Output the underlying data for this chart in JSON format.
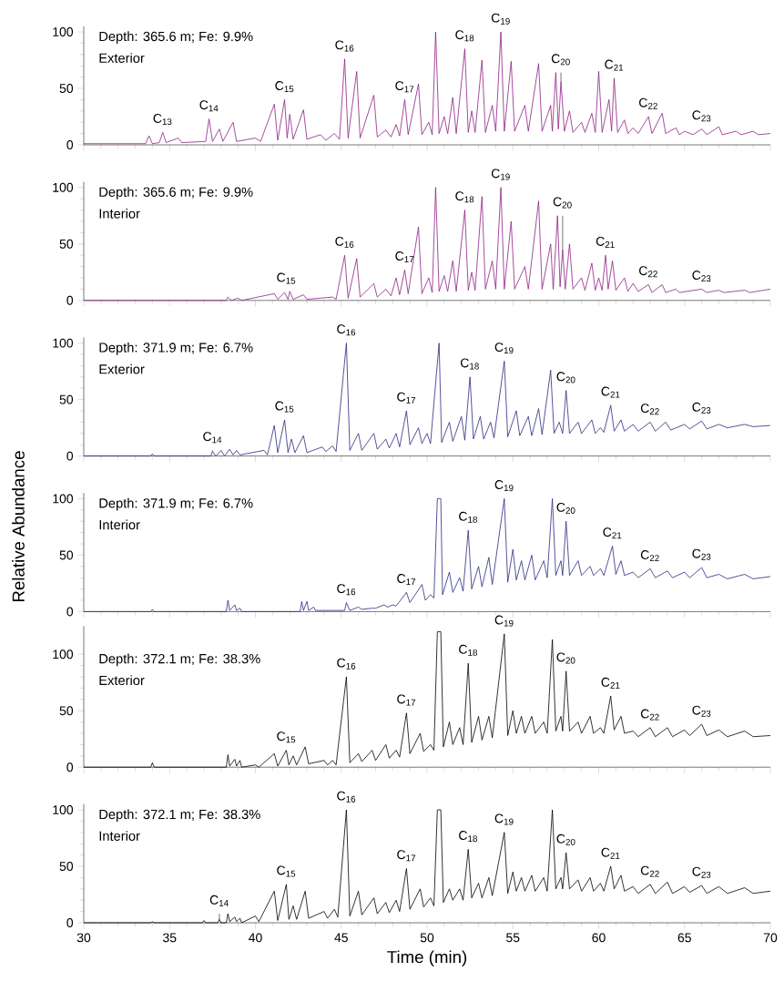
{
  "chart_data": [
    {
      "type": "line",
      "title": "Depth: 365.6 m; Fe: 9.9%",
      "subtitle": "Exterior",
      "tick_labels": "y",
      "xlim": [
        30,
        70
      ],
      "xticks": [
        30,
        35,
        40,
        45,
        50,
        55,
        60,
        65,
        70
      ],
      "ylim": [
        0,
        105
      ],
      "yticks": [
        0,
        50,
        100
      ],
      "series": [
        {
          "color": "#8e1f85",
          "x": [
            30,
            33.6,
            33.8,
            34.0,
            34.4,
            34.6,
            34.8,
            35.5,
            35.7,
            37.1,
            37.3,
            37.5,
            37.9,
            38.1,
            38.7,
            38.9,
            40.0,
            40.3,
            41.1,
            41.3,
            41.7,
            41.85,
            42.0,
            42.2,
            42.8,
            43.0,
            43.8,
            44.1,
            44.6,
            44.9,
            45.2,
            45.4,
            45.9,
            46.1,
            46.9,
            47.1,
            47.6,
            47.9,
            48.2,
            48.4,
            48.7,
            48.9,
            49.5,
            49.7,
            50.1,
            50.3,
            50.5,
            50.7,
            51.0,
            51.2,
            51.5,
            51.7,
            52.2,
            52.4,
            52.6,
            52.8,
            53.2,
            53.4,
            53.8,
            54.0,
            54.3,
            54.5,
            54.9,
            55.1,
            55.7,
            55.9,
            56.5,
            56.7,
            57.2,
            57.3,
            57.5,
            57.65,
            57.8,
            58.0,
            58.3,
            58.5,
            59.0,
            59.2,
            59.6,
            59.8,
            60.0,
            60.2,
            60.6,
            60.75,
            60.9,
            61.1,
            61.5,
            61.7,
            62.0,
            62.3,
            62.9,
            63.1,
            63.7,
            63.9,
            64.5,
            64.7,
            65.0,
            65.5,
            66.0,
            66.3,
            67.0,
            67.2,
            68.0,
            68.3,
            69.0,
            69.3,
            70.0
          ],
          "values": [
            1,
            1,
            8,
            1,
            2,
            11,
            2,
            6,
            2,
            3,
            23,
            3,
            14,
            3,
            20,
            3,
            6,
            3,
            36,
            4,
            40,
            6,
            27,
            5,
            31,
            5,
            9,
            4,
            10,
            5,
            76,
            6,
            65,
            6,
            44,
            7,
            13,
            7,
            18,
            8,
            40,
            9,
            54,
            9,
            20,
            9,
            100,
            10,
            25,
            10,
            42,
            10,
            85,
            11,
            30,
            11,
            75,
            11,
            35,
            12,
            100,
            12,
            74,
            12,
            35,
            12,
            72,
            12,
            35,
            12,
            64,
            14,
            56,
            12,
            30,
            11,
            20,
            11,
            28,
            11,
            65,
            11,
            40,
            12,
            59,
            11,
            22,
            10,
            15,
            10,
            25,
            10,
            28,
            10,
            15,
            9,
            12,
            9,
            14,
            9,
            16,
            9,
            12,
            9,
            12,
            9,
            10
          ]
        }
      ],
      "annotations": [
        {
          "text": "C$_{13}$",
          "x": 34.6,
          "y": 11
        },
        {
          "text": "C$_{14}$",
          "x": 37.3,
          "y": 23
        },
        {
          "text": "C$_{15}$",
          "x": 41.7,
          "y": 40
        },
        {
          "text": "C$_{16}$",
          "x": 45.2,
          "y": 76
        },
        {
          "text": "C$_{17}$",
          "x": 48.7,
          "y": 40
        },
        {
          "text": "C$_{18}$",
          "x": 52.2,
          "y": 85
        },
        {
          "text": "C$_{19}$",
          "x": 54.3,
          "y": 100
        },
        {
          "text": "C$_{20}$",
          "x": 57.8,
          "y": 56
        },
        {
          "text": "C$_{21}$",
          "x": 60.9,
          "y": 59
        },
        {
          "text": "C$_{22}$",
          "x": 62.9,
          "y": 25
        },
        {
          "text": "C$_{23}$",
          "x": 66.0,
          "y": 14
        }
      ]
    },
    {
      "type": "line",
      "title": "Depth: 365.6 m; Fe: 9.9%",
      "subtitle": "Interior",
      "tick_labels": "y",
      "xlim": [
        30,
        70
      ],
      "xticks": [
        30,
        35,
        40,
        45,
        50,
        55,
        60,
        65,
        70
      ],
      "ylim": [
        0,
        105
      ],
      "yticks": [
        0,
        50,
        100
      ],
      "series": [
        {
          "color": "#8e1f85",
          "x": [
            30,
            38.3,
            38.4,
            38.6,
            39.0,
            39.2,
            41.1,
            41.3,
            41.7,
            41.9,
            42.0,
            42.2,
            42.8,
            43.0,
            44.5,
            44.7,
            45.2,
            45.4,
            45.9,
            46.1,
            46.9,
            47.1,
            47.6,
            47.9,
            48.2,
            48.4,
            48.7,
            48.9,
            49.5,
            49.7,
            50.1,
            50.3,
            50.5,
            50.7,
            51.0,
            51.2,
            51.5,
            51.7,
            52.2,
            52.4,
            52.6,
            52.8,
            53.2,
            53.4,
            53.8,
            54.0,
            54.3,
            54.5,
            54.9,
            55.1,
            55.7,
            55.9,
            56.5,
            56.7,
            57.2,
            57.35,
            57.6,
            57.75,
            57.9,
            58.05,
            58.3,
            58.5,
            59.0,
            59.2,
            59.6,
            59.8,
            60.0,
            60.2,
            60.4,
            60.55,
            60.8,
            61.0,
            61.5,
            61.7,
            62.0,
            62.3,
            62.9,
            63.1,
            63.7,
            63.9,
            64.5,
            64.7,
            66.0,
            66.3,
            67.0,
            67.3,
            68.5,
            68.8,
            70.0
          ],
          "values": [
            0,
            0,
            3,
            0,
            2,
            0,
            6,
            1,
            7,
            1,
            8,
            1,
            5,
            1,
            3,
            1,
            40,
            2,
            37,
            3,
            15,
            3,
            10,
            4,
            20,
            5,
            27,
            6,
            65,
            6,
            20,
            7,
            100,
            8,
            22,
            8,
            35,
            8,
            80,
            9,
            25,
            9,
            92,
            10,
            35,
            10,
            100,
            10,
            70,
            10,
            30,
            10,
            88,
            10,
            50,
            10,
            75,
            12,
            45,
            10,
            50,
            10,
            20,
            9,
            33,
            9,
            20,
            9,
            40,
            10,
            35,
            9,
            20,
            8,
            15,
            8,
            14,
            7,
            14,
            7,
            10,
            7,
            10,
            7,
            9,
            7,
            9,
            7,
            10
          ]
        }
      ],
      "annotations": [
        {
          "text": "C$_{15}$",
          "x": 41.8,
          "y": 8
        },
        {
          "text": "C$_{16}$",
          "x": 45.2,
          "y": 40
        },
        {
          "text": "C$_{17}$",
          "x": 48.7,
          "y": 27
        },
        {
          "text": "C$_{18}$",
          "x": 52.2,
          "y": 80
        },
        {
          "text": "C$_{19}$",
          "x": 54.3,
          "y": 100
        },
        {
          "text": "C$_{20}$",
          "x": 57.9,
          "y": 45
        },
        {
          "text": "C$_{21}$",
          "x": 60.4,
          "y": 40
        },
        {
          "text": "C$_{22}$",
          "x": 62.9,
          "y": 14
        },
        {
          "text": "C$_{23}$",
          "x": 66.0,
          "y": 10
        }
      ]
    },
    {
      "type": "line",
      "title": "Depth: 371.9 m; Fe: 6.7%",
      "subtitle": "Exterior",
      "tick_labels": "y",
      "xlim": [
        30,
        70
      ],
      "xticks": [
        30,
        35,
        40,
        45,
        50,
        55,
        60,
        65,
        70
      ],
      "ylim": [
        0,
        105
      ],
      "yticks": [
        0,
        50,
        100
      ],
      "series": [
        {
          "color": "#2b2a80",
          "x": [
            30,
            33.9,
            34.0,
            34.1,
            37.4,
            37.5,
            37.7,
            38.0,
            38.2,
            38.5,
            38.7,
            38.9,
            39.1,
            40.5,
            40.7,
            41.1,
            41.3,
            41.7,
            41.9,
            42.1,
            42.3,
            42.8,
            43.0,
            43.9,
            44.1,
            44.5,
            44.7,
            45.3,
            45.5,
            46.0,
            46.2,
            46.9,
            47.1,
            47.6,
            47.8,
            48.2,
            48.4,
            48.8,
            49.0,
            49.5,
            49.7,
            50.0,
            50.2,
            50.7,
            50.85,
            51.3,
            51.5,
            52.0,
            52.2,
            52.5,
            52.7,
            53.1,
            53.3,
            53.7,
            53.9,
            54.5,
            54.7,
            55.2,
            55.4,
            55.9,
            56.1,
            56.5,
            56.7,
            57.2,
            57.4,
            57.7,
            57.9,
            58.1,
            58.3,
            58.8,
            59.0,
            59.6,
            59.8,
            60.1,
            60.3,
            60.7,
            60.9,
            61.3,
            61.5,
            62.0,
            62.3,
            63.0,
            63.3,
            63.9,
            64.2,
            65.0,
            65.3,
            66.0,
            66.3,
            67.0,
            67.5,
            68.5,
            69.0,
            70.0
          ],
          "values": [
            0,
            0,
            2,
            0,
            0,
            4,
            0,
            5,
            0,
            6,
            1,
            5,
            1,
            5,
            1,
            27,
            3,
            32,
            3,
            15,
            3,
            18,
            3,
            8,
            4,
            9,
            4,
            100,
            5,
            20,
            5,
            20,
            6,
            15,
            7,
            20,
            8,
            40,
            10,
            25,
            11,
            20,
            11,
            100,
            12,
            30,
            13,
            35,
            14,
            70,
            15,
            35,
            15,
            30,
            16,
            84,
            17,
            40,
            18,
            35,
            18,
            42,
            19,
            76,
            20,
            30,
            20,
            58,
            20,
            30,
            20,
            32,
            20,
            25,
            21,
            45,
            22,
            32,
            22,
            28,
            22,
            30,
            22,
            30,
            23,
            28,
            24,
            31,
            24,
            28,
            25,
            28,
            26,
            27
          ]
        }
      ],
      "annotations": [
        {
          "text": "C$_{14}$",
          "x": 37.5,
          "y": 4
        },
        {
          "text": "C$_{15}$",
          "x": 41.7,
          "y": 32
        },
        {
          "text": "C$_{16}$",
          "x": 45.3,
          "y": 100
        },
        {
          "text": "C$_{17}$",
          "x": 48.8,
          "y": 40
        },
        {
          "text": "C$_{18}$",
          "x": 52.5,
          "y": 70
        },
        {
          "text": "C$_{19}$",
          "x": 54.5,
          "y": 84
        },
        {
          "text": "C$_{20}$",
          "x": 58.1,
          "y": 58
        },
        {
          "text": "C$_{21}$",
          "x": 60.7,
          "y": 45
        },
        {
          "text": "C$_{22}$",
          "x": 63.0,
          "y": 30
        },
        {
          "text": "C$_{23}$",
          "x": 66.0,
          "y": 31
        }
      ]
    },
    {
      "type": "line",
      "title": "Depth: 371.9 m; Fe: 6.7%",
      "subtitle": "Interior",
      "ylabel": "Relative Abundance",
      "tick_labels": "y",
      "xlim": [
        30,
        70
      ],
      "xticks": [
        30,
        35,
        40,
        45,
        50,
        55,
        60,
        65,
        70
      ],
      "ylim": [
        0,
        105
      ],
      "yticks": [
        0,
        50,
        100
      ],
      "series": [
        {
          "color": "#2b2a80",
          "x": [
            30,
            33.9,
            34.0,
            34.1,
            38.3,
            38.4,
            38.5,
            38.8,
            38.9,
            39.1,
            39.2,
            42.6,
            42.7,
            42.8,
            43.0,
            43.1,
            43.4,
            43.5,
            45.2,
            45.3,
            45.5,
            46.0,
            46.2,
            46.8,
            47.0,
            47.5,
            47.7,
            48.0,
            48.2,
            48.8,
            49.0,
            49.7,
            49.9,
            50.2,
            50.4,
            50.6,
            50.8,
            50.9,
            51.3,
            51.5,
            51.9,
            52.1,
            52.4,
            52.6,
            53.0,
            53.2,
            53.6,
            53.8,
            54.5,
            54.7,
            55.0,
            55.2,
            55.5,
            55.7,
            56.1,
            56.3,
            56.8,
            57.0,
            57.3,
            57.5,
            57.8,
            57.9,
            58.1,
            58.3,
            58.8,
            59.0,
            59.5,
            59.7,
            60.1,
            60.3,
            60.8,
            61.0,
            61.3,
            61.5,
            62.0,
            62.3,
            63.0,
            63.3,
            64.0,
            64.3,
            65.0,
            65.3,
            66.0,
            66.3,
            67.0,
            67.5,
            68.5,
            69.0,
            70.0
          ],
          "values": [
            0,
            0,
            2,
            0,
            0,
            10,
            1,
            6,
            1,
            3,
            0,
            0,
            9,
            1,
            9,
            1,
            4,
            1,
            1,
            8,
            1,
            4,
            2,
            3,
            3,
            6,
            4,
            6,
            5,
            17,
            8,
            24,
            10,
            15,
            12,
            100,
            100,
            15,
            35,
            17,
            30,
            18,
            72,
            20,
            40,
            22,
            48,
            24,
            100,
            26,
            55,
            28,
            45,
            28,
            50,
            28,
            45,
            30,
            100,
            32,
            45,
            32,
            80,
            32,
            45,
            32,
            40,
            32,
            38,
            32,
            58,
            33,
            45,
            32,
            35,
            30,
            38,
            30,
            36,
            30,
            35,
            30,
            39,
            30,
            33,
            29,
            33,
            29,
            31
          ]
        }
      ],
      "annotations": [
        {
          "text": "C$_{16}$",
          "x": 45.3,
          "y": 8
        },
        {
          "text": "C$_{17}$",
          "x": 48.8,
          "y": 17
        },
        {
          "text": "C$_{18}$",
          "x": 52.4,
          "y": 72
        },
        {
          "text": "C$_{19}$",
          "x": 54.5,
          "y": 100
        },
        {
          "text": "C$_{20}$",
          "x": 58.1,
          "y": 80
        },
        {
          "text": "C$_{21}$",
          "x": 60.8,
          "y": 58
        },
        {
          "text": "C$_{22}$",
          "x": 63.0,
          "y": 38
        },
        {
          "text": "C$_{23}$",
          "x": 66.0,
          "y": 39
        }
      ]
    },
    {
      "type": "line",
      "title": "Depth: 372.1 m; Fe: 38.3%",
      "subtitle": "Exterior",
      "tick_labels": "y",
      "xlim": [
        30,
        70
      ],
      "xticks": [
        30,
        35,
        40,
        45,
        50,
        55,
        60,
        65,
        70
      ],
      "ylim": [
        0,
        125
      ],
      "yticks": [
        0,
        50,
        100
      ],
      "series": [
        {
          "color": "#000000",
          "x": [
            30,
            33.9,
            34.0,
            34.1,
            38.3,
            38.4,
            38.5,
            38.8,
            38.9,
            39.1,
            39.2,
            40.0,
            40.2,
            41.1,
            41.3,
            41.8,
            41.95,
            42.2,
            42.4,
            42.9,
            43.1,
            44.0,
            44.2,
            44.5,
            44.7,
            45.3,
            45.5,
            46.0,
            46.2,
            46.8,
            47.0,
            47.6,
            47.8,
            48.2,
            48.4,
            48.8,
            49.0,
            49.6,
            49.8,
            50.2,
            50.4,
            50.6,
            50.8,
            50.95,
            51.3,
            51.5,
            51.9,
            52.1,
            52.4,
            52.6,
            53.0,
            53.2,
            53.6,
            53.8,
            54.5,
            54.7,
            55.0,
            55.2,
            55.5,
            55.7,
            56.1,
            56.3,
            56.8,
            57.0,
            57.3,
            57.5,
            57.8,
            57.9,
            58.1,
            58.3,
            58.8,
            59.0,
            59.5,
            59.7,
            60.1,
            60.3,
            60.7,
            60.9,
            61.3,
            61.5,
            62.0,
            62.3,
            63.0,
            63.3,
            64.0,
            64.3,
            65.0,
            65.3,
            66.0,
            66.3,
            67.0,
            67.5,
            68.5,
            69.0,
            70.0
          ],
          "values": [
            0,
            0,
            4,
            0,
            0,
            11,
            1,
            7,
            1,
            6,
            0,
            2,
            0,
            12,
            1,
            15,
            2,
            10,
            2,
            18,
            3,
            6,
            2,
            6,
            2,
            80,
            4,
            12,
            5,
            15,
            6,
            20,
            8,
            15,
            9,
            48,
            12,
            30,
            14,
            20,
            15,
            120,
            120,
            18,
            40,
            20,
            35,
            20,
            92,
            22,
            45,
            24,
            45,
            26,
            118,
            28,
            50,
            30,
            45,
            30,
            45,
            30,
            40,
            30,
            113,
            32,
            45,
            32,
            85,
            32,
            40,
            30,
            45,
            30,
            35,
            30,
            63,
            33,
            45,
            30,
            32,
            27,
            35,
            27,
            35,
            27,
            33,
            28,
            38,
            28,
            33,
            27,
            32,
            27,
            28
          ]
        }
      ],
      "annotations": [
        {
          "text": "C$_{15}$",
          "x": 41.8,
          "y": 15
        },
        {
          "text": "C$_{16}$",
          "x": 45.3,
          "y": 80
        },
        {
          "text": "C$_{17}$",
          "x": 48.8,
          "y": 48
        },
        {
          "text": "C$_{18}$",
          "x": 52.4,
          "y": 92
        },
        {
          "text": "C$_{19}$",
          "x": 54.5,
          "y": 118
        },
        {
          "text": "C$_{20}$",
          "x": 58.1,
          "y": 85
        },
        {
          "text": "C$_{21}$",
          "x": 60.7,
          "y": 63
        },
        {
          "text": "C$_{22}$",
          "x": 63.0,
          "y": 35
        },
        {
          "text": "C$_{23}$",
          "x": 66.0,
          "y": 38
        }
      ]
    },
    {
      "type": "line",
      "title": "Depth: 372.1 m; Fe: 38.3%",
      "subtitle": "Interior",
      "xlabel": "Time (min)",
      "xlim": [
        30,
        70
      ],
      "xticks": [
        30,
        35,
        40,
        45,
        50,
        55,
        60,
        65,
        70
      ],
      "ylim": [
        0,
        105
      ],
      "yticks": [
        0,
        50,
        100
      ],
      "series": [
        {
          "color": "#000000",
          "x": [
            30,
            33.9,
            34.0,
            34.1,
            36.9,
            37.0,
            37.1,
            37.8,
            37.9,
            38.0,
            38.3,
            38.4,
            38.5,
            38.8,
            38.9,
            39.1,
            39.2,
            40.0,
            40.2,
            41.1,
            41.3,
            41.8,
            41.95,
            42.2,
            42.4,
            42.9,
            43.1,
            44.0,
            44.2,
            44.6,
            44.8,
            45.3,
            45.5,
            46.0,
            46.2,
            46.9,
            47.1,
            47.6,
            47.8,
            48.2,
            48.4,
            48.8,
            49.0,
            49.6,
            49.8,
            50.2,
            50.4,
            50.6,
            50.8,
            50.95,
            51.3,
            51.5,
            51.9,
            52.1,
            52.4,
            52.6,
            53.0,
            53.2,
            53.6,
            53.8,
            54.5,
            54.7,
            55.0,
            55.2,
            55.5,
            55.7,
            56.1,
            56.3,
            56.8,
            57.0,
            57.3,
            57.5,
            57.8,
            57.9,
            58.1,
            58.3,
            58.8,
            59.0,
            59.5,
            59.7,
            60.1,
            60.3,
            60.7,
            60.9,
            61.3,
            61.5,
            62.0,
            62.3,
            63.0,
            63.3,
            64.0,
            64.3,
            65.0,
            65.3,
            66.0,
            66.3,
            67.0,
            67.5,
            68.5,
            69.0,
            70.0
          ],
          "values": [
            0,
            0,
            1,
            0,
            0,
            2,
            0,
            0,
            3,
            0,
            0,
            8,
            1,
            5,
            1,
            4,
            0,
            6,
            1,
            28,
            2,
            34,
            3,
            15,
            3,
            28,
            4,
            10,
            4,
            12,
            5,
            100,
            6,
            28,
            7,
            22,
            8,
            18,
            9,
            20,
            10,
            48,
            12,
            30,
            14,
            22,
            15,
            100,
            100,
            18,
            30,
            20,
            30,
            20,
            65,
            22,
            35,
            22,
            40,
            24,
            80,
            26,
            45,
            28,
            40,
            28,
            42,
            28,
            40,
            28,
            100,
            30,
            40,
            30,
            62,
            30,
            38,
            28,
            40,
            28,
            35,
            28,
            50,
            30,
            42,
            28,
            32,
            26,
            34,
            26,
            36,
            26,
            32,
            27,
            33,
            26,
            32,
            26,
            31,
            26,
            28
          ]
        }
      ],
      "annotations": [
        {
          "text": "C$_{14}$",
          "x": 37.9,
          "y": 3
        },
        {
          "text": "C$_{15}$",
          "x": 41.8,
          "y": 34
        },
        {
          "text": "C$_{16}$",
          "x": 45.3,
          "y": 100
        },
        {
          "text": "C$_{17}$",
          "x": 48.8,
          "y": 48
        },
        {
          "text": "C$_{18}$",
          "x": 52.4,
          "y": 65
        },
        {
          "text": "C$_{19}$",
          "x": 54.5,
          "y": 80
        },
        {
          "text": "C$_{20}$",
          "x": 58.1,
          "y": 62
        },
        {
          "text": "C$_{21}$",
          "x": 60.7,
          "y": 50
        },
        {
          "text": "C$_{22}$",
          "x": 63.0,
          "y": 34
        },
        {
          "text": "C$_{23}$",
          "x": 66.0,
          "y": 33
        }
      ]
    }
  ]
}
